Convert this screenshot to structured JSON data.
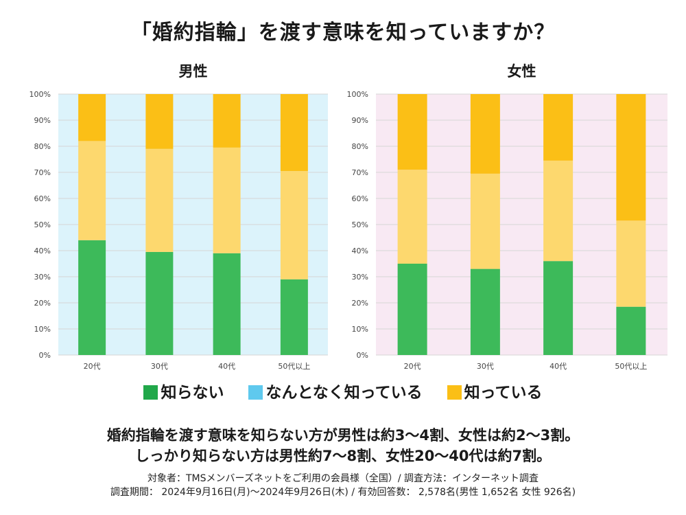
{
  "title": "「婚約指輪」を渡す意味を知っていますか？",
  "colors": {
    "dont_know": "#3dba5a",
    "somewhat": "#fdd86e",
    "know": "#fbbf16",
    "male_bg": "#dcf3fb",
    "female_bg": "#f8e9f3"
  },
  "legend": [
    {
      "label": "知らない",
      "color": "#21a84a"
    },
    {
      "label": "なんとなく知っている",
      "color": "#5fc9ee"
    },
    {
      "label": "知っている",
      "color": "#fbbf16"
    }
  ],
  "chart_data": [
    {
      "type": "bar",
      "stacked": true,
      "title": "男性",
      "categories": [
        "20代",
        "30代",
        "40代",
        "50代以上"
      ],
      "series": [
        {
          "name": "知らない",
          "values": [
            44,
            39.5,
            39,
            29
          ]
        },
        {
          "name": "なんとなく知っている",
          "values": [
            38,
            39.5,
            40.5,
            41.5
          ]
        },
        {
          "name": "知っている",
          "values": [
            18,
            21,
            20.5,
            29.5
          ]
        }
      ],
      "ylim": [
        0,
        100
      ],
      "yticks": [
        "0%",
        "10%",
        "20%",
        "30%",
        "40%",
        "50%",
        "60%",
        "70%",
        "80%",
        "90%",
        "100%"
      ],
      "grid": true
    },
    {
      "type": "bar",
      "stacked": true,
      "title": "女性",
      "categories": [
        "20代",
        "30代",
        "40代",
        "50代以上"
      ],
      "series": [
        {
          "name": "知らない",
          "values": [
            35,
            33,
            36,
            18.5
          ]
        },
        {
          "name": "なんとなく知っている",
          "values": [
            36,
            36.5,
            38.5,
            33
          ]
        },
        {
          "name": "知っている",
          "values": [
            29,
            30.5,
            25.5,
            48.5
          ]
        }
      ],
      "ylim": [
        0,
        100
      ],
      "yticks": [
        "0%",
        "10%",
        "20%",
        "30%",
        "40%",
        "50%",
        "60%",
        "70%",
        "80%",
        "90%",
        "100%"
      ],
      "grid": true
    }
  ],
  "summary": [
    "婚約指輪を渡す意味を知らない方が男性は約3〜4割、女性は約2〜3割。",
    "しっかり知らない方は男性約7〜8割、女性20〜40代は約7割。"
  ],
  "notes": [
    "対象者：TMSメンバーズネットをご利用の会員様（全国）/ 調査方法：インターネット調査",
    "調査期間： 2024年9月16日(月)〜2024年9月26日(木)  / 有効回答数： 2,578名(男性 1,652名  女性 926名)"
  ]
}
